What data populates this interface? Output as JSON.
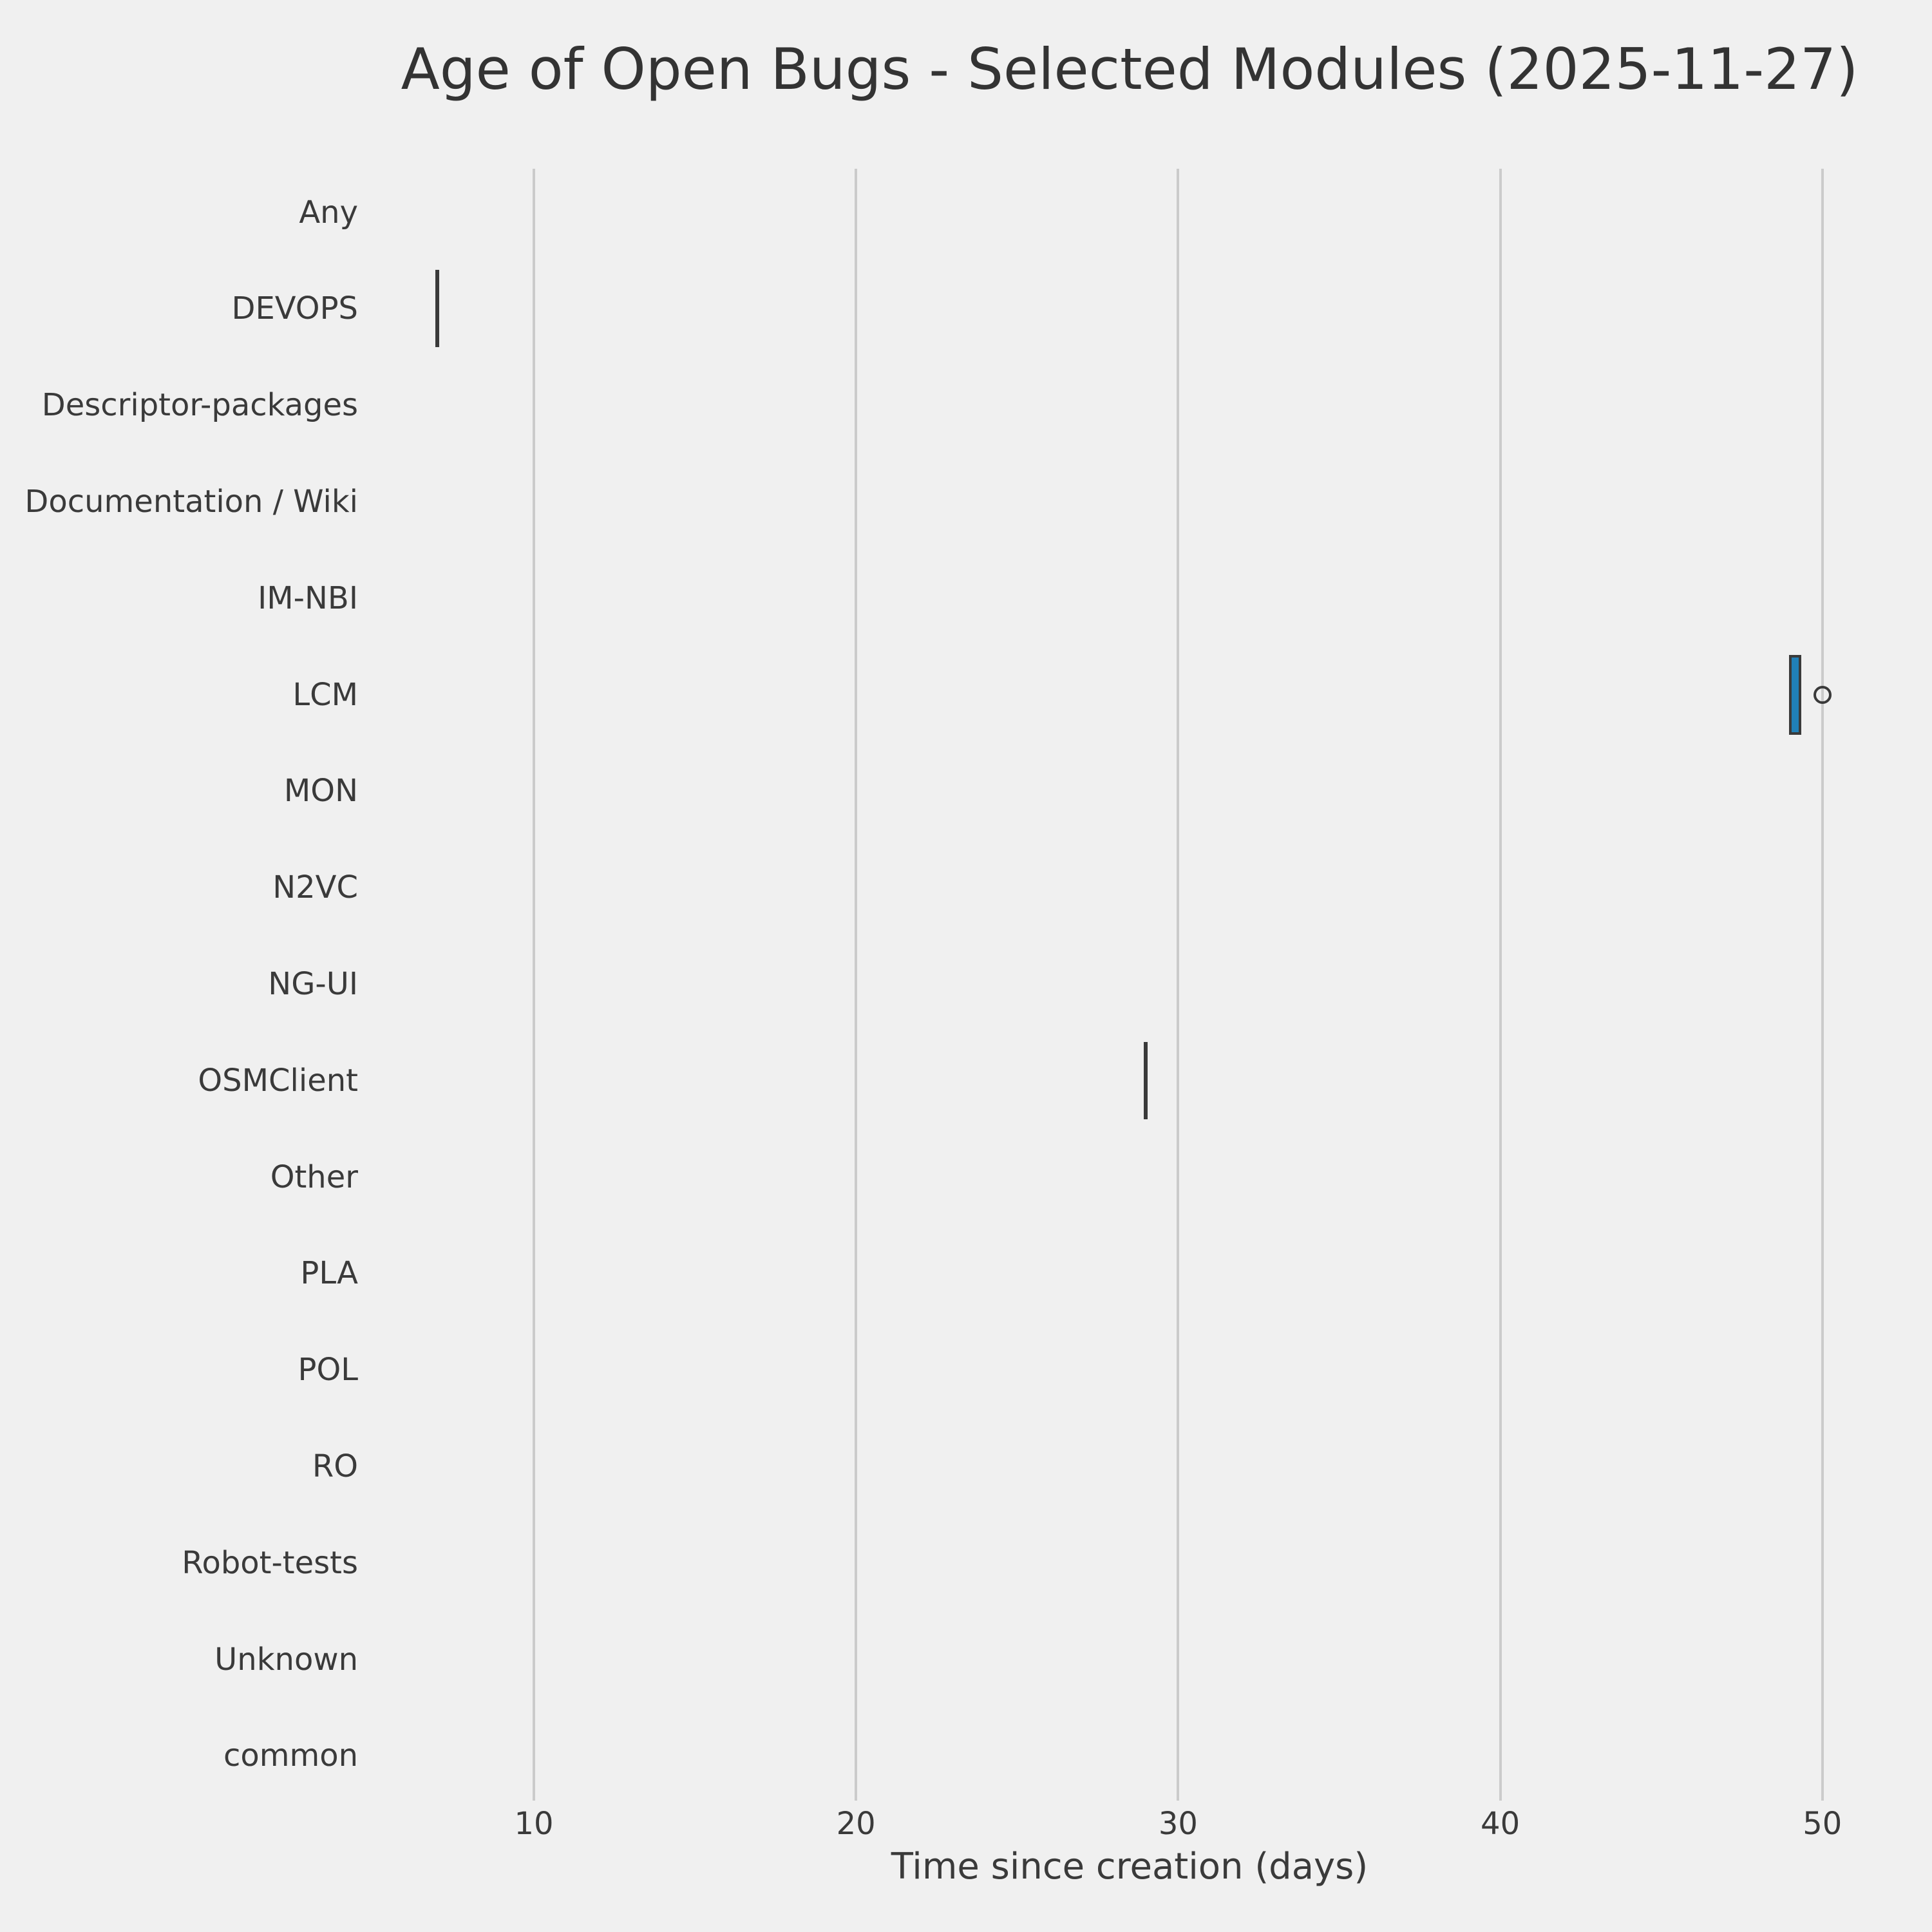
{
  "title": "Age of Open Bugs - Selected Modules (2025-11-27)",
  "xlabel": "Time since creation (days)",
  "colors": {
    "background": "#f0f0f0",
    "grid": "#cbcbcb",
    "text": "#3a3a3a",
    "box_fill": "#2080b8",
    "box_edge": "#3a3a3a"
  },
  "chart_data": {
    "type": "boxplot",
    "orientation": "horizontal",
    "title": "Age of Open Bugs - Selected Modules (2025-11-27)",
    "xlabel": "Time since creation (days)",
    "ylabel": "",
    "categories": [
      "Any",
      "DEVOPS",
      "Descriptor-packages",
      "Documentation / Wiki",
      "IM-NBI",
      "LCM",
      "MON",
      "N2VC",
      "NG-UI",
      "OSMClient",
      "Other",
      "PLA",
      "POL",
      "RO",
      "Robot-tests",
      "Unknown",
      "common"
    ],
    "x_ticks": [
      10,
      20,
      30,
      40,
      50
    ],
    "xlim": [
      4.85,
      52.15
    ],
    "grid": "vertical-only",
    "legend": "none",
    "boxes": [
      {
        "category": "DEVOPS",
        "whislo": 7,
        "q1": 7,
        "med": 7,
        "q3": 7,
        "whishi": 7,
        "fliers": []
      },
      {
        "category": "LCM",
        "whislo": 49.0,
        "q1": 49.0,
        "med": 49.15,
        "q3": 49.3,
        "whishi": 49.3,
        "fliers": [
          50
        ]
      },
      {
        "category": "OSMClient",
        "whislo": 29,
        "q1": 29,
        "med": 29,
        "q3": 29,
        "whishi": 29,
        "fliers": []
      }
    ]
  }
}
